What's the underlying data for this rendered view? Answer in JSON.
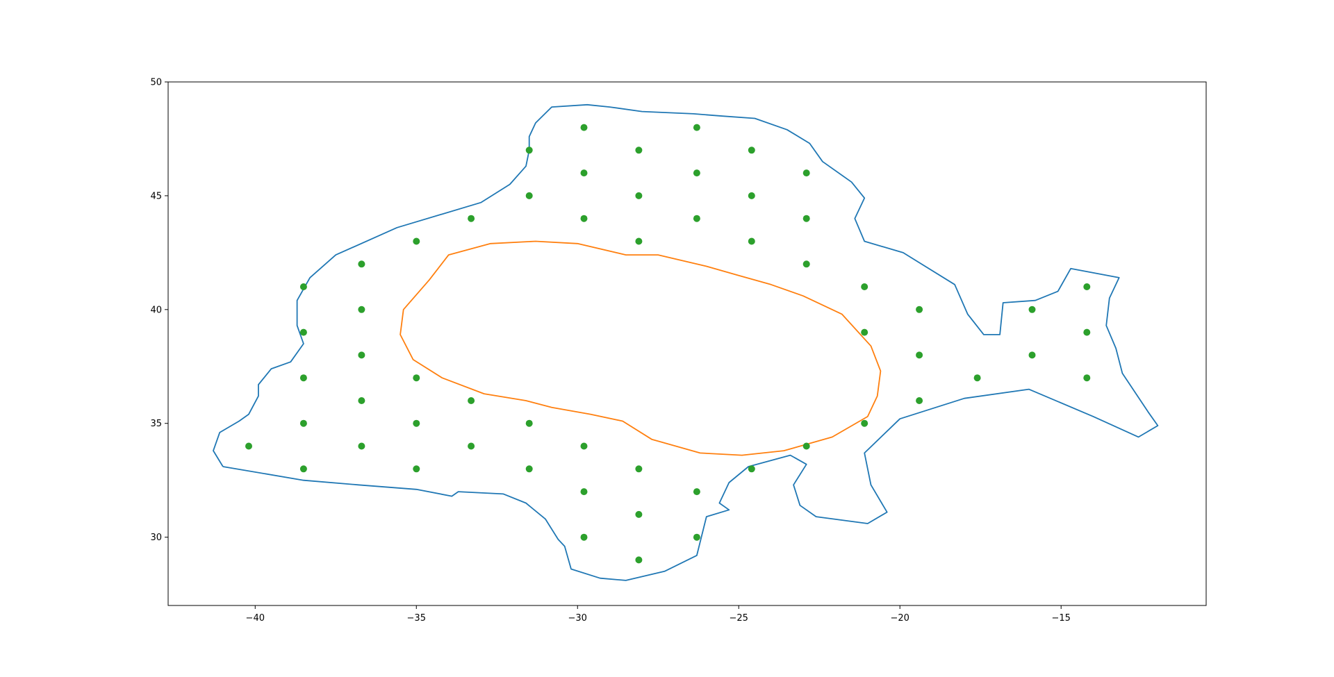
{
  "chart_data": {
    "type": "scatter",
    "title": "",
    "xlabel": "",
    "ylabel": "",
    "xlim": [
      -42.7,
      -10.5
    ],
    "ylim": [
      27.0,
      50.0
    ],
    "grid": false,
    "legend": "none",
    "x_ticks": [
      {
        "value": -40,
        "label": "−40"
      },
      {
        "value": -35,
        "label": "−35"
      },
      {
        "value": -30,
        "label": "−30"
      },
      {
        "value": -25,
        "label": "−25"
      },
      {
        "value": -20,
        "label": "−20"
      },
      {
        "value": -15,
        "label": "−15"
      }
    ],
    "y_ticks": [
      {
        "value": 30,
        "label": "30"
      },
      {
        "value": 35,
        "label": "35"
      },
      {
        "value": 40,
        "label": "40"
      },
      {
        "value": 45,
        "label": "45"
      },
      {
        "value": 50,
        "label": "50"
      }
    ],
    "colors": {
      "outer_boundary": "#1f77b4",
      "inner_boundary": "#ff7f0e",
      "points": "#2ca02c"
    },
    "outer_boundary": [
      [
        -41.0,
        33.1
      ],
      [
        -41.3,
        33.8
      ],
      [
        -41.1,
        34.6
      ],
      [
        -40.5,
        35.1
      ],
      [
        -40.2,
        35.4
      ],
      [
        -39.9,
        36.2
      ],
      [
        -39.9,
        36.7
      ],
      [
        -39.5,
        37.4
      ],
      [
        -38.9,
        37.7
      ],
      [
        -38.5,
        38.5
      ],
      [
        -38.7,
        39.3
      ],
      [
        -38.7,
        40.4
      ],
      [
        -38.3,
        41.4
      ],
      [
        -37.5,
        42.4
      ],
      [
        -35.6,
        43.6
      ],
      [
        -33.0,
        44.7
      ],
      [
        -32.1,
        45.5
      ],
      [
        -31.6,
        46.3
      ],
      [
        -31.5,
        47.0
      ],
      [
        -31.5,
        47.6
      ],
      [
        -31.3,
        48.2
      ],
      [
        -30.8,
        48.9
      ],
      [
        -29.7,
        49.0
      ],
      [
        -29.0,
        48.9
      ],
      [
        -28.0,
        48.7
      ],
      [
        -26.4,
        48.6
      ],
      [
        -25.5,
        48.5
      ],
      [
        -24.5,
        48.4
      ],
      [
        -23.5,
        47.9
      ],
      [
        -22.8,
        47.3
      ],
      [
        -22.4,
        46.5
      ],
      [
        -21.5,
        45.6
      ],
      [
        -21.1,
        44.9
      ],
      [
        -21.4,
        44.0
      ],
      [
        -21.1,
        43.0
      ],
      [
        -19.9,
        42.5
      ],
      [
        -18.3,
        41.1
      ],
      [
        -17.9,
        39.8
      ],
      [
        -17.4,
        38.9
      ],
      [
        -16.9,
        38.9
      ],
      [
        -16.8,
        40.3
      ],
      [
        -15.8,
        40.4
      ],
      [
        -15.1,
        40.8
      ],
      [
        -14.7,
        41.8
      ],
      [
        -13.2,
        41.4
      ],
      [
        -13.5,
        40.5
      ],
      [
        -13.6,
        39.3
      ],
      [
        -13.3,
        38.3
      ],
      [
        -13.1,
        37.2
      ],
      [
        -12.3,
        35.5
      ],
      [
        -12.0,
        34.9
      ],
      [
        -12.6,
        34.4
      ],
      [
        -14.0,
        35.3
      ],
      [
        -16.0,
        36.5
      ],
      [
        -18.0,
        36.1
      ],
      [
        -20.0,
        35.2
      ],
      [
        -21.1,
        33.7
      ],
      [
        -20.9,
        32.3
      ],
      [
        -20.4,
        31.1
      ],
      [
        -21.0,
        30.6
      ],
      [
        -22.6,
        30.9
      ],
      [
        -23.1,
        31.4
      ],
      [
        -23.3,
        32.3
      ],
      [
        -22.9,
        33.2
      ],
      [
        -23.4,
        33.6
      ],
      [
        -24.7,
        33.1
      ],
      [
        -25.3,
        32.4
      ],
      [
        -25.6,
        31.5
      ],
      [
        -25.3,
        31.2
      ],
      [
        -26.0,
        30.9
      ],
      [
        -26.3,
        29.2
      ],
      [
        -27.3,
        28.5
      ],
      [
        -28.5,
        28.1
      ],
      [
        -29.3,
        28.2
      ],
      [
        -30.2,
        28.6
      ],
      [
        -30.4,
        29.6
      ],
      [
        -30.6,
        29.9
      ],
      [
        -31.0,
        30.8
      ],
      [
        -31.6,
        31.5
      ],
      [
        -32.3,
        31.9
      ],
      [
        -33.7,
        32.0
      ],
      [
        -33.9,
        31.8
      ],
      [
        -35.0,
        32.1
      ],
      [
        -36.8,
        32.3
      ],
      [
        -38.5,
        32.5
      ],
      [
        -41.0,
        33.1
      ]
    ],
    "inner_boundary": [
      [
        -34.6,
        41.3
      ],
      [
        -35.4,
        40.0
      ],
      [
        -35.5,
        38.9
      ],
      [
        -35.1,
        37.8
      ],
      [
        -34.2,
        37.0
      ],
      [
        -32.9,
        36.3
      ],
      [
        -31.6,
        36.0
      ],
      [
        -30.8,
        35.7
      ],
      [
        -29.6,
        35.4
      ],
      [
        -28.6,
        35.1
      ],
      [
        -27.7,
        34.3
      ],
      [
        -26.2,
        33.7
      ],
      [
        -24.9,
        33.6
      ],
      [
        -23.6,
        33.8
      ],
      [
        -22.1,
        34.4
      ],
      [
        -21.0,
        35.3
      ],
      [
        -20.7,
        36.2
      ],
      [
        -20.6,
        37.3
      ],
      [
        -20.9,
        38.4
      ],
      [
        -21.8,
        39.8
      ],
      [
        -23.0,
        40.6
      ],
      [
        -24.0,
        41.1
      ],
      [
        -25.0,
        41.5
      ],
      [
        -26.0,
        41.9
      ],
      [
        -27.5,
        42.4
      ],
      [
        -28.5,
        42.4
      ],
      [
        -30.0,
        42.9
      ],
      [
        -31.3,
        43.0
      ],
      [
        -32.7,
        42.9
      ],
      [
        -34.0,
        42.4
      ],
      [
        -34.6,
        41.3
      ]
    ],
    "points": [
      [
        -40.2,
        34.0
      ],
      [
        -38.5,
        33.0
      ],
      [
        -38.5,
        35.0
      ],
      [
        -38.5,
        37.0
      ],
      [
        -38.5,
        39.0
      ],
      [
        -38.5,
        41.0
      ],
      [
        -36.7,
        34.0
      ],
      [
        -36.7,
        36.0
      ],
      [
        -36.7,
        38.0
      ],
      [
        -36.7,
        40.0
      ],
      [
        -36.7,
        42.0
      ],
      [
        -35.0,
        33.0
      ],
      [
        -35.0,
        35.0
      ],
      [
        -35.0,
        37.0
      ],
      [
        -35.0,
        43.0
      ],
      [
        -33.3,
        34.0
      ],
      [
        -33.3,
        36.0
      ],
      [
        -33.3,
        44.0
      ],
      [
        -31.5,
        33.0
      ],
      [
        -31.5,
        35.0
      ],
      [
        -31.5,
        45.0
      ],
      [
        -31.5,
        47.0
      ],
      [
        -29.8,
        30.0
      ],
      [
        -29.8,
        32.0
      ],
      [
        -29.8,
        34.0
      ],
      [
        -29.8,
        44.0
      ],
      [
        -29.8,
        46.0
      ],
      [
        -29.8,
        48.0
      ],
      [
        -28.1,
        29.0
      ],
      [
        -28.1,
        31.0
      ],
      [
        -28.1,
        33.0
      ],
      [
        -28.1,
        43.0
      ],
      [
        -28.1,
        45.0
      ],
      [
        -28.1,
        47.0
      ],
      [
        -26.3,
        30.0
      ],
      [
        -26.3,
        32.0
      ],
      [
        -26.3,
        44.0
      ],
      [
        -26.3,
        46.0
      ],
      [
        -26.3,
        48.0
      ],
      [
        -24.6,
        33.0
      ],
      [
        -24.6,
        43.0
      ],
      [
        -24.6,
        45.0
      ],
      [
        -24.6,
        47.0
      ],
      [
        -22.9,
        34.0
      ],
      [
        -22.9,
        42.0
      ],
      [
        -22.9,
        44.0
      ],
      [
        -22.9,
        46.0
      ],
      [
        -21.1,
        35.0
      ],
      [
        -21.1,
        39.0
      ],
      [
        -21.1,
        41.0
      ],
      [
        -19.4,
        36.0
      ],
      [
        -19.4,
        38.0
      ],
      [
        -19.4,
        40.0
      ],
      [
        -17.6,
        37.0
      ],
      [
        -15.9,
        38.0
      ],
      [
        -15.9,
        40.0
      ],
      [
        -14.2,
        37.0
      ],
      [
        -14.2,
        39.0
      ],
      [
        -14.2,
        41.0
      ]
    ]
  }
}
